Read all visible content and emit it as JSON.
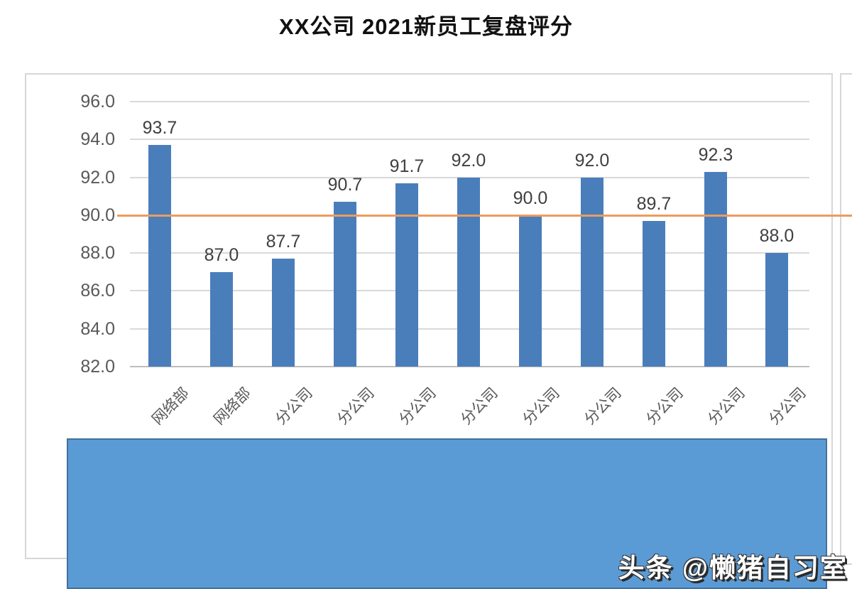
{
  "page": {
    "title": "XX公司 2021新员工复盘评分"
  },
  "watermark": {
    "text": "头条 @懒猪自习室"
  },
  "overlay": {
    "fill_color": "#5B9BD5",
    "border_color": "#41719C"
  },
  "chart_data": {
    "type": "bar",
    "title": "XX公司 2021新员工复盘评分",
    "categories": [
      "网络部",
      "网络部",
      "分公司",
      "分公司",
      "分公司",
      "分公司",
      "分公司",
      "分公司",
      "分公司",
      "分公司",
      "分公司"
    ],
    "values": [
      93.7,
      87.0,
      87.7,
      90.7,
      91.7,
      92.0,
      90.0,
      92.0,
      89.7,
      92.3,
      88.0
    ],
    "value_labels": [
      "93.7",
      "87.0",
      "87.7",
      "90.7",
      "91.7",
      "92.0",
      "90.0",
      "92.0",
      "89.7",
      "92.3",
      "88.0"
    ],
    "yticks": [
      "96.0",
      "94.0",
      "92.0",
      "90.0",
      "88.0",
      "86.0",
      "84.0",
      "82.0"
    ],
    "ylim": [
      82,
      96
    ],
    "xlabel": "",
    "ylabel": "",
    "legend": "none",
    "grid": "horizontal",
    "bar_color": "#4A7EBB",
    "gridline_color": "#D9D9D9",
    "target_line": {
      "value": 90.0,
      "color": "#ED9C5C"
    }
  }
}
